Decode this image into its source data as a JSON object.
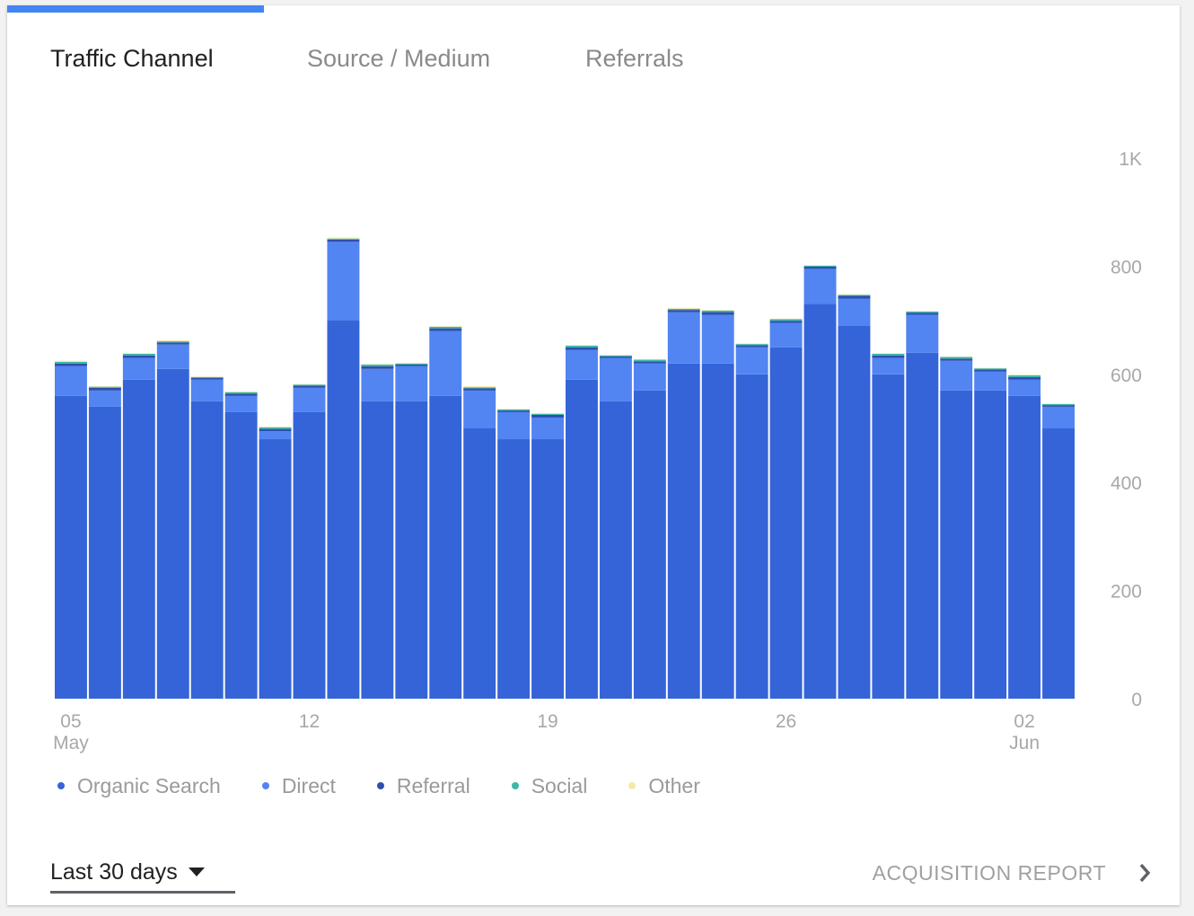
{
  "tabs": [
    {
      "label": "Traffic Channel",
      "active": true
    },
    {
      "label": "Source / Medium",
      "active": false
    },
    {
      "label": "Referrals",
      "active": false
    }
  ],
  "footer": {
    "period_label": "Last 30 days",
    "report_label": "ACQUISITION REPORT"
  },
  "colors": {
    "accent": "#4285f4",
    "organic": "#3564d9",
    "direct": "#5284f2",
    "referral": "#2e4fb0",
    "social": "#39b8a6",
    "other": "#f5e9a8"
  },
  "chart_data": {
    "type": "bar",
    "stacked": true,
    "ylim": [
      0,
      1000
    ],
    "y_ticks": [
      {
        "value": 0,
        "label": "0"
      },
      {
        "value": 200,
        "label": "200"
      },
      {
        "value": 400,
        "label": "400"
      },
      {
        "value": 600,
        "label": "600"
      },
      {
        "value": 800,
        "label": "800"
      },
      {
        "value": 1000,
        "label": "1K"
      }
    ],
    "x_ticks": [
      {
        "index": 0,
        "label": "05",
        "sublabel": "May"
      },
      {
        "index": 7,
        "label": "12",
        "sublabel": ""
      },
      {
        "index": 14,
        "label": "19",
        "sublabel": ""
      },
      {
        "index": 21,
        "label": "26",
        "sublabel": ""
      },
      {
        "index": 28,
        "label": "02",
        "sublabel": "Jun"
      }
    ],
    "categories": [
      "May 5",
      "May 6",
      "May 7",
      "May 8",
      "May 9",
      "May 10",
      "May 11",
      "May 12",
      "May 13",
      "May 14",
      "May 15",
      "May 16",
      "May 17",
      "May 18",
      "May 19",
      "May 20",
      "May 21",
      "May 22",
      "May 23",
      "May 24",
      "May 25",
      "May 26",
      "May 27",
      "May 28",
      "May 29",
      "May 30",
      "May 31",
      "Jun 1",
      "Jun 2",
      "Jun 3"
    ],
    "series": [
      {
        "name": "Organic Search",
        "color": "#3564d9",
        "values": [
          560,
          540,
          590,
          610,
          550,
          530,
          480,
          530,
          700,
          550,
          550,
          560,
          500,
          480,
          480,
          590,
          550,
          570,
          620,
          620,
          600,
          650,
          730,
          690,
          600,
          640,
          570,
          570,
          560,
          500
        ]
      },
      {
        "name": "Direct",
        "color": "#5284f2",
        "values": [
          55,
          30,
          40,
          45,
          40,
          30,
          15,
          45,
          145,
          60,
          65,
          120,
          70,
          50,
          40,
          55,
          80,
          50,
          95,
          90,
          50,
          45,
          65,
          50,
          30,
          70,
          55,
          35,
          30,
          40
        ]
      },
      {
        "name": "Referral",
        "color": "#2e4fb0",
        "values": [
          5,
          5,
          5,
          4,
          3,
          4,
          4,
          4,
          4,
          5,
          3,
          5,
          4,
          3,
          5,
          5,
          3,
          4,
          4,
          5,
          4,
          4,
          4,
          5,
          5,
          4,
          4,
          4,
          5,
          3
        ]
      },
      {
        "name": "Social",
        "color": "#39b8a6",
        "values": [
          3,
          2,
          3,
          2,
          2,
          3,
          3,
          2,
          2,
          3,
          2,
          3,
          2,
          2,
          2,
          3,
          2,
          3,
          2,
          3,
          2,
          3,
          2,
          2,
          3,
          2,
          3,
          2,
          3,
          2
        ]
      },
      {
        "name": "Other",
        "color": "#f5e9a8",
        "values": [
          2,
          1,
          1,
          2,
          1,
          1,
          1,
          1,
          2,
          1,
          1,
          1,
          2,
          1,
          1,
          1,
          1,
          1,
          2,
          1,
          1,
          1,
          1,
          1,
          1,
          1,
          1,
          1,
          1,
          1
        ]
      }
    ]
  }
}
